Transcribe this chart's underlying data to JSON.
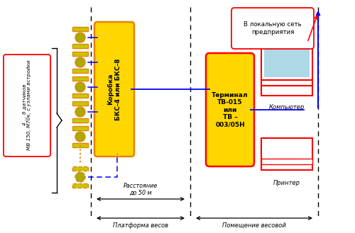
{
  "bg_color": "#ffffff",
  "sensor_outer": "#E8820A",
  "sensor_inner": "#C8C800",
  "sensor_inner2": "#AAAA00",
  "box_fill": "#FFD700",
  "box_edge": "#E8820A",
  "terminal_fill": "#FFD700",
  "terminal_edge": "#FF0000",
  "screen_fill": "#ADD8E6",
  "comp_edge": "#FF0000",
  "printer_edge": "#FF0000",
  "blue": "#0000FF",
  "red": "#FF0000",
  "black": "#000000",
  "label_sensor": "4 ... 6 датчиков\nМВ 150, М70к, с узлами встройки",
  "label_box": "Коробка\nБКС-4 или БКС-8",
  "label_terminal": "Терминал\nТВ-015\nили\nТВ –\n003/05Н",
  "label_computer": "Компьютер",
  "label_printer": "Принтер",
  "label_network": "В локальную сеть\nпредприятия",
  "label_distance": "Расстояние\nдо 50 м",
  "label_platform": "Платформа весов",
  "label_room": "Помещение весовой"
}
